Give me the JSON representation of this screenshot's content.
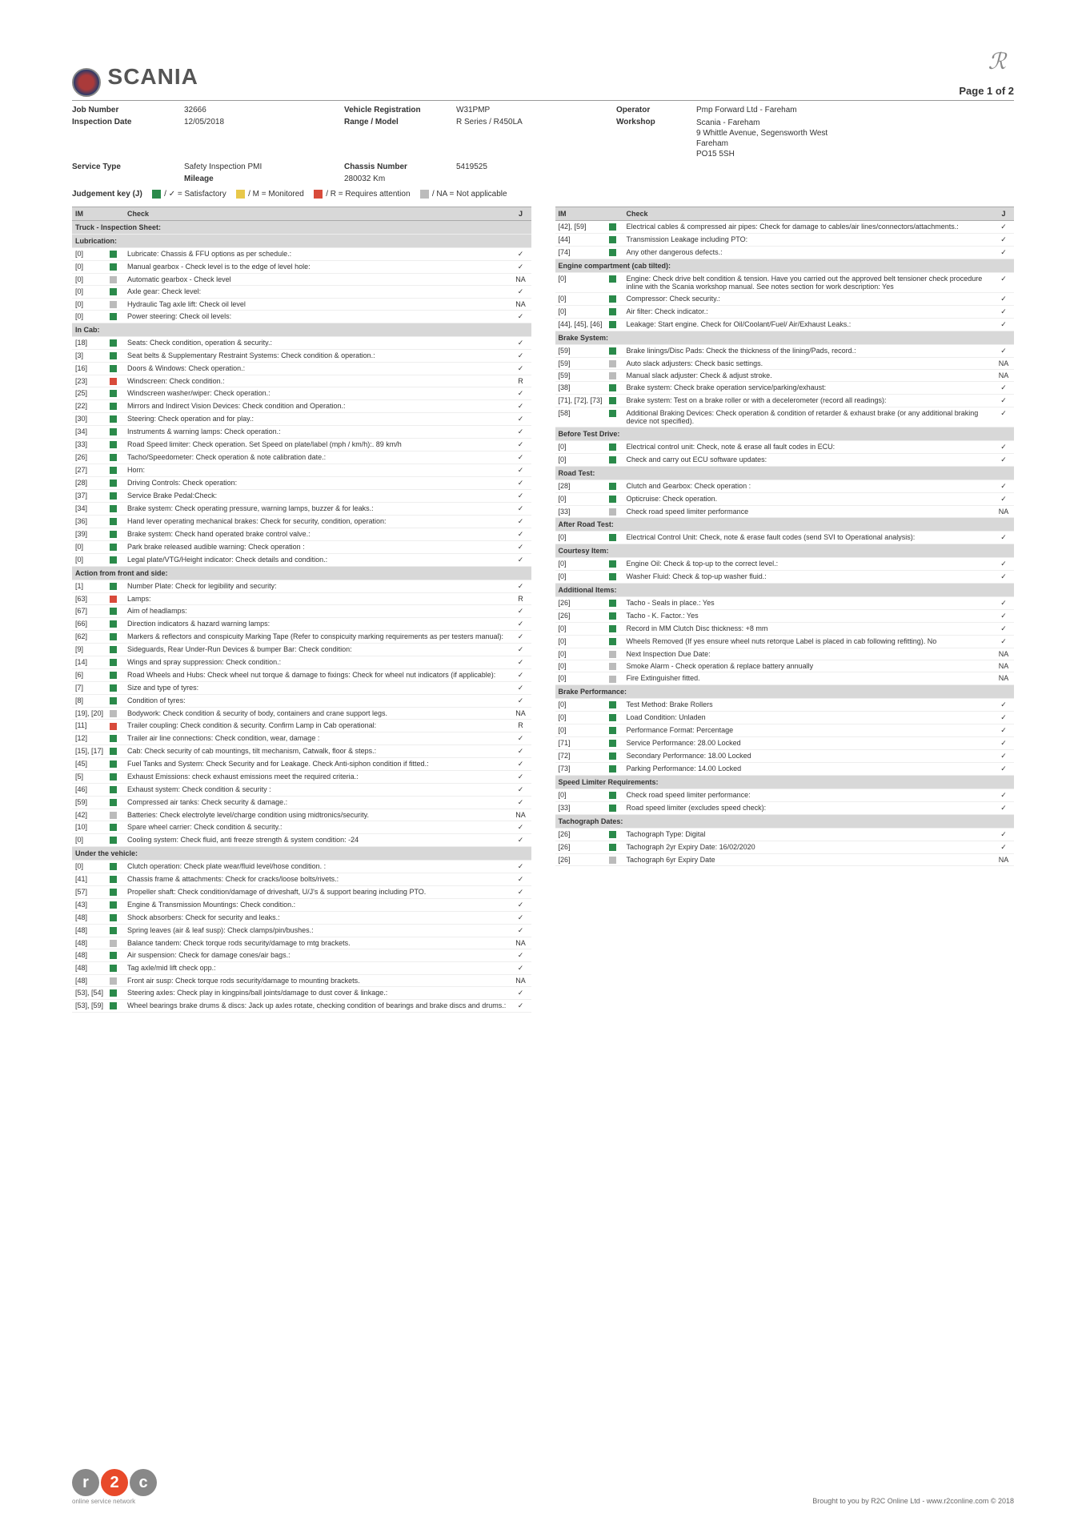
{
  "page_label": "Page 1 of 2",
  "brand": "SCANIA",
  "header": {
    "job_number_lbl": "Job Number",
    "job_number": "32666",
    "inspection_date_lbl": "Inspection Date",
    "inspection_date": "12/05/2018",
    "service_type_lbl": "Service Type",
    "service_type": "Safety Inspection PMI",
    "vehicle_reg_lbl": "Vehicle Registration",
    "vehicle_reg": "W31PMP",
    "range_lbl": "Range / Model",
    "range": "R Series / R450LA",
    "chassis_lbl": "Chassis Number",
    "chassis": "5419525",
    "mileage_lbl": "Mileage",
    "mileage": "280032 Km",
    "operator_lbl": "Operator",
    "operator": "Pmp Forward Ltd - Fareham",
    "workshop_lbl": "Workshop",
    "workshop": "Scania - Fareham",
    "workshop_addr": "9 Whittle Avenue, Segensworth West\nFareham\nPO15 5SH"
  },
  "legend": {
    "title": "Judgement key (J)",
    "sat": "/ ✓ = Satisfactory",
    "mon": "/ M = Monitored",
    "req": "/ R = Requires attention",
    "na": "/ NA = Not applicable"
  },
  "colors": {
    "g": "#2a8a4a",
    "y": "#e8c84a",
    "r": "#d84a3a",
    "gr": "#bbbbbb"
  },
  "th": {
    "im": "IM",
    "check": "Check",
    "j": "J"
  },
  "left": [
    {
      "sect": "Truck - Inspection Sheet:"
    },
    {
      "sect": "Lubrication:"
    },
    {
      "im": "[0]",
      "c": "g",
      "t": "Lubricate: Chassis & FFU options as per schedule.:",
      "j": "✓"
    },
    {
      "im": "[0]",
      "c": "g",
      "t": "Manual gearbox - Check level is to the edge of level hole:",
      "j": "✓"
    },
    {
      "im": "[0]",
      "c": "gr",
      "t": "Automatic gearbox - Check level",
      "j": "NA"
    },
    {
      "im": "[0]",
      "c": "g",
      "t": "Axle gear: Check level:",
      "j": "✓"
    },
    {
      "im": "[0]",
      "c": "gr",
      "t": "Hydraulic Tag axle lift: Check oil level",
      "j": "NA"
    },
    {
      "im": "[0]",
      "c": "g",
      "t": "Power steering: Check oil levels:",
      "j": "✓"
    },
    {
      "sect": "In Cab:"
    },
    {
      "im": "[18]",
      "c": "g",
      "t": "Seats: Check condition, operation & security.:",
      "j": "✓"
    },
    {
      "im": "[3]",
      "c": "g",
      "t": "Seat belts & Supplementary Restraint Systems: Check condition & operation.:",
      "j": "✓"
    },
    {
      "im": "[16]",
      "c": "g",
      "t": "Doors & Windows: Check operation.:",
      "j": "✓"
    },
    {
      "im": "[23]",
      "c": "r",
      "t": "Windscreen: Check condition.:",
      "j": "R"
    },
    {
      "im": "[25]",
      "c": "g",
      "t": "Windscreen washer/wiper: Check operation.:",
      "j": "✓"
    },
    {
      "im": "[22]",
      "c": "g",
      "t": "Mirrors and Indirect Vision Devices: Check condition and Operation.:",
      "j": "✓"
    },
    {
      "im": "[30]",
      "c": "g",
      "t": "Steering: Check operation and for play.:",
      "j": "✓"
    },
    {
      "im": "[34]",
      "c": "g",
      "t": "Instruments & warning lamps: Check operation.:",
      "j": "✓"
    },
    {
      "im": "[33]",
      "c": "g",
      "t": "Road Speed limiter: Check operation. Set Speed on plate/label (mph / km/h):. 89 km/h",
      "j": "✓"
    },
    {
      "im": "[26]",
      "c": "g",
      "t": "Tacho/Speedometer: Check operation & note calibration date.:",
      "j": "✓"
    },
    {
      "im": "[27]",
      "c": "g",
      "t": "Horn:",
      "j": "✓"
    },
    {
      "im": "[28]",
      "c": "g",
      "t": "Driving Controls: Check operation:",
      "j": "✓"
    },
    {
      "im": "[37]",
      "c": "g",
      "t": "Service Brake Pedal:Check:",
      "j": "✓"
    },
    {
      "im": "[34]",
      "c": "g",
      "t": "Brake system: Check operating pressure, warning lamps, buzzer & for leaks.:",
      "j": "✓"
    },
    {
      "im": "[36]",
      "c": "g",
      "t": "Hand lever operating mechanical brakes: Check for security, condition, operation:",
      "j": "✓"
    },
    {
      "im": "[39]",
      "c": "g",
      "t": "Brake system: Check hand operated brake control valve.:",
      "j": "✓"
    },
    {
      "im": "[0]",
      "c": "g",
      "t": "Park brake released audible warning: Check operation :",
      "j": "✓"
    },
    {
      "im": "[0]",
      "c": "g",
      "t": "Legal plate/VTG/Height indicator: Check details and condition.:",
      "j": "✓"
    },
    {
      "sect": "Action from front and side:"
    },
    {
      "im": "[1]",
      "c": "g",
      "t": "Number Plate: Check for legibility and security:",
      "j": "✓"
    },
    {
      "im": "[63]",
      "c": "r",
      "t": "Lamps:",
      "j": "R"
    },
    {
      "im": "[67]",
      "c": "g",
      "t": "Aim of headlamps:",
      "j": "✓"
    },
    {
      "im": "[66]",
      "c": "g",
      "t": "Direction indicators & hazard warning lamps:",
      "j": "✓"
    },
    {
      "im": "[62]",
      "c": "g",
      "t": "Markers & reflectors and conspicuity Marking Tape (Refer to conspicuity marking requirements as per testers manual):",
      "j": "✓"
    },
    {
      "im": "[9]",
      "c": "g",
      "t": "Sideguards, Rear Under-Run Devices & bumper Bar: Check condition:",
      "j": "✓"
    },
    {
      "im": "[14]",
      "c": "g",
      "t": "Wings and spray suppression: Check condition.:",
      "j": "✓"
    },
    {
      "im": "[6]",
      "c": "g",
      "t": "Road Wheels and Hubs: Check wheel nut torque & damage to fixings: Check for wheel nut indicators (if applicable):",
      "j": "✓"
    },
    {
      "im": "[7]",
      "c": "g",
      "t": "Size and type of tyres:",
      "j": "✓"
    },
    {
      "im": "[8]",
      "c": "g",
      "t": "Condition of tyres:",
      "j": "✓"
    },
    {
      "im": "[19], [20]",
      "c": "gr",
      "t": "Bodywork: Check condition & security of body, containers and crane support legs.",
      "j": "NA"
    },
    {
      "im": "[11]",
      "c": "r",
      "t": "Trailer coupling: Check condition & security. Confirm Lamp in Cab operational:",
      "j": "R"
    },
    {
      "im": "[12]",
      "c": "g",
      "t": "Trailer air line connections: Check condition, wear, damage :",
      "j": "✓"
    },
    {
      "im": "[15], [17]",
      "c": "g",
      "t": "Cab: Check security of cab mountings, tilt mechanism, Catwalk, floor & steps.:",
      "j": "✓"
    },
    {
      "im": "[45]",
      "c": "g",
      "t": "Fuel Tanks and System: Check Security and for Leakage. Check Anti-siphon condition if fitted.:",
      "j": "✓"
    },
    {
      "im": "[5]",
      "c": "g",
      "t": "Exhaust Emissions: check exhaust emissions meet the required criteria.:",
      "j": "✓"
    },
    {
      "im": "[46]",
      "c": "g",
      "t": "Exhaust system: Check condition & security :",
      "j": "✓"
    },
    {
      "im": "[59]",
      "c": "g",
      "t": "Compressed air tanks: Check security & damage.:",
      "j": "✓"
    },
    {
      "im": "[42]",
      "c": "gr",
      "t": "Batteries: Check electrolyte level/charge condition using midtronics/security.",
      "j": "NA"
    },
    {
      "im": "[10]",
      "c": "g",
      "t": "Spare wheel carrier: Check condition & security.:",
      "j": "✓"
    },
    {
      "im": "[0]",
      "c": "g",
      "t": "Cooling system: Check fluid, anti freeze strength & system condition: -24",
      "j": "✓"
    },
    {
      "sect": "Under the vehicle:"
    },
    {
      "im": "[0]",
      "c": "g",
      "t": "Clutch operation: Check plate wear/fluid level/hose condition. :",
      "j": "✓"
    },
    {
      "im": "[41]",
      "c": "g",
      "t": "Chassis frame & attachments: Check for cracks/loose bolts/rivets.:",
      "j": "✓"
    },
    {
      "im": "[57]",
      "c": "g",
      "t": "Propeller shaft: Check condition/damage of driveshaft, U/J's & support bearing including PTO.",
      "j": "✓"
    },
    {
      "im": "[43]",
      "c": "g",
      "t": "Engine & Transmission Mountings: Check condition.:",
      "j": "✓"
    },
    {
      "im": "[48]",
      "c": "g",
      "t": "Shock absorbers: Check for security and leaks.:",
      "j": "✓"
    },
    {
      "im": "[48]",
      "c": "g",
      "t": "Spring leaves (air & leaf susp): Check clamps/pin/bushes.:",
      "j": "✓"
    },
    {
      "im": "[48]",
      "c": "gr",
      "t": "Balance tandem: Check torque rods security/damage to mtg brackets.",
      "j": "NA"
    },
    {
      "im": "[48]",
      "c": "g",
      "t": "Air suspension: Check for damage cones/air bags.:",
      "j": "✓"
    },
    {
      "im": "[48]",
      "c": "g",
      "t": "Tag axle/mid lift check opp.:",
      "j": "✓"
    },
    {
      "im": "[48]",
      "c": "gr",
      "t": "Front air susp: Check torque rods security/damage to mounting brackets.",
      "j": "NA"
    },
    {
      "im": "[53], [54]",
      "c": "g",
      "t": "Steering axles: Check play in kingpins/ball joints/damage to dust cover & linkage.:",
      "j": "✓"
    },
    {
      "im": "[53], [59]",
      "c": "g",
      "t": "Wheel bearings brake drums & discs: Jack up axles rotate, checking condition of bearings and brake discs and drums.:",
      "j": "✓"
    }
  ],
  "right": [
    {
      "im": "[42], [59]",
      "c": "g",
      "t": "Electrical cables & compressed air pipes: Check for damage to cables/air lines/connectors/attachments.:",
      "j": "✓"
    },
    {
      "im": "[44]",
      "c": "g",
      "t": "Transmission Leakage including PTO:",
      "j": "✓"
    },
    {
      "im": "[74]",
      "c": "g",
      "t": "Any other dangerous defects.:",
      "j": "✓"
    },
    {
      "sect": "Engine compartment (cab tilted):"
    },
    {
      "im": "[0]",
      "c": "g",
      "t": "Engine: Check drive belt condition & tension. Have you carried out the approved belt tensioner check procedure inline with the Scania workshop manual. See notes section for work description: Yes",
      "j": "✓"
    },
    {
      "im": "[0]",
      "c": "g",
      "t": "Compressor: Check security.:",
      "j": "✓"
    },
    {
      "im": "[0]",
      "c": "g",
      "t": "Air filter: Check indicator.:",
      "j": "✓"
    },
    {
      "im": "[44], [45], [46]",
      "c": "g",
      "t": "Leakage: Start engine. Check for Oil/Coolant/Fuel/ Air/Exhaust Leaks.:",
      "j": "✓"
    },
    {
      "sect": "Brake System:"
    },
    {
      "im": "[59]",
      "c": "g",
      "t": "Brake linings/Disc Pads: Check the thickness of the lining/Pads, record.:",
      "j": "✓"
    },
    {
      "im": "[59]",
      "c": "gr",
      "t": "Auto slack adjusters: Check basic settings.",
      "j": "NA"
    },
    {
      "im": "[59]",
      "c": "gr",
      "t": "Manual slack adjuster: Check & adjust stroke.",
      "j": "NA"
    },
    {
      "im": "[38]",
      "c": "g",
      "t": "Brake system: Check brake operation service/parking/exhaust:",
      "j": "✓"
    },
    {
      "im": "[71], [72], [73]",
      "c": "g",
      "t": "Brake system: Test on a brake roller or with a decelerometer (record all readings):",
      "j": "✓"
    },
    {
      "im": "[58]",
      "c": "g",
      "t": "Additional Braking Devices: Check operation & condition of retarder & exhaust brake (or any additional braking device not specified).",
      "j": "✓"
    },
    {
      "sect": "Before Test Drive:"
    },
    {
      "im": "[0]",
      "c": "g",
      "t": "Electrical control unit: Check, note & erase all fault codes in ECU:",
      "j": "✓"
    },
    {
      "im": "[0]",
      "c": "g",
      "t": "Check and carry out ECU software updates:",
      "j": "✓"
    },
    {
      "sect": "Road Test:"
    },
    {
      "im": "[28]",
      "c": "g",
      "t": "Clutch and Gearbox: Check operation :",
      "j": "✓"
    },
    {
      "im": "[0]",
      "c": "g",
      "t": "Opticruise: Check operation.",
      "j": "✓"
    },
    {
      "im": "[33]",
      "c": "gr",
      "t": "Check road speed limiter performance",
      "j": "NA"
    },
    {
      "sect": "After Road Test:"
    },
    {
      "im": "[0]",
      "c": "g",
      "t": "Electrical Control Unit: Check, note & erase fault codes (send SVI to Operational analysis):",
      "j": "✓"
    },
    {
      "sect": "Courtesy Item:"
    },
    {
      "im": "[0]",
      "c": "g",
      "t": "Engine Oil: Check & top-up to the correct level.:",
      "j": "✓"
    },
    {
      "im": "[0]",
      "c": "g",
      "t": "Washer Fluid: Check & top-up washer fluid.:",
      "j": "✓"
    },
    {
      "sect": "Additional Items:"
    },
    {
      "im": "[26]",
      "c": "g",
      "t": "Tacho - Seals in place.: Yes",
      "j": "✓"
    },
    {
      "im": "[26]",
      "c": "g",
      "t": "Tacho - K. Factor.: Yes",
      "j": "✓"
    },
    {
      "im": "[0]",
      "c": "g",
      "t": "Record in MM Clutch Disc thickness: +8 mm",
      "j": "✓"
    },
    {
      "im": "[0]",
      "c": "g",
      "t": "Wheels Removed (If yes ensure wheel nuts retorque Label is placed in cab following refitting). No",
      "j": "✓"
    },
    {
      "im": "[0]",
      "c": "gr",
      "t": "Next Inspection Due Date:",
      "j": "NA"
    },
    {
      "im": "[0]",
      "c": "gr",
      "t": "Smoke Alarm - Check operation & replace battery annually",
      "j": "NA"
    },
    {
      "im": "[0]",
      "c": "gr",
      "t": "Fire Extinguisher fitted.",
      "j": "NA"
    },
    {
      "sect": "Brake Performance:"
    },
    {
      "im": "[0]",
      "c": "g",
      "t": "Test Method: Brake Rollers",
      "j": "✓"
    },
    {
      "im": "[0]",
      "c": "g",
      "t": "Load Condition: Unladen",
      "j": "✓"
    },
    {
      "im": "[0]",
      "c": "g",
      "t": "Performance Format: Percentage",
      "j": "✓"
    },
    {
      "im": "[71]",
      "c": "g",
      "t": "Service Performance: 28.00 Locked",
      "j": "✓"
    },
    {
      "im": "[72]",
      "c": "g",
      "t": "Secondary Performance: 18.00 Locked",
      "j": "✓"
    },
    {
      "im": "[73]",
      "c": "g",
      "t": "Parking Performance: 14.00 Locked",
      "j": "✓"
    },
    {
      "sect": "Speed Limiter Requirements:"
    },
    {
      "im": "[0]",
      "c": "g",
      "t": "Check road speed limiter performance:",
      "j": "✓"
    },
    {
      "im": "[33]",
      "c": "g",
      "t": "Road speed limiter (excludes speed check):",
      "j": "✓"
    },
    {
      "sect": "Tachograph Dates:"
    },
    {
      "im": "[26]",
      "c": "g",
      "t": "Tachograph Type: Digital",
      "j": "✓"
    },
    {
      "im": "[26]",
      "c": "g",
      "t": "Tachograph 2yr Expiry Date: 16/02/2020",
      "j": "✓"
    },
    {
      "im": "[26]",
      "c": "gr",
      "t": "Tachograph 6yr Expiry Date",
      "j": "NA"
    }
  ],
  "footer": {
    "r2c_tag": "online service network",
    "brought": "Brought to you by R2C Online Ltd - www.r2conline.com © 2018"
  }
}
